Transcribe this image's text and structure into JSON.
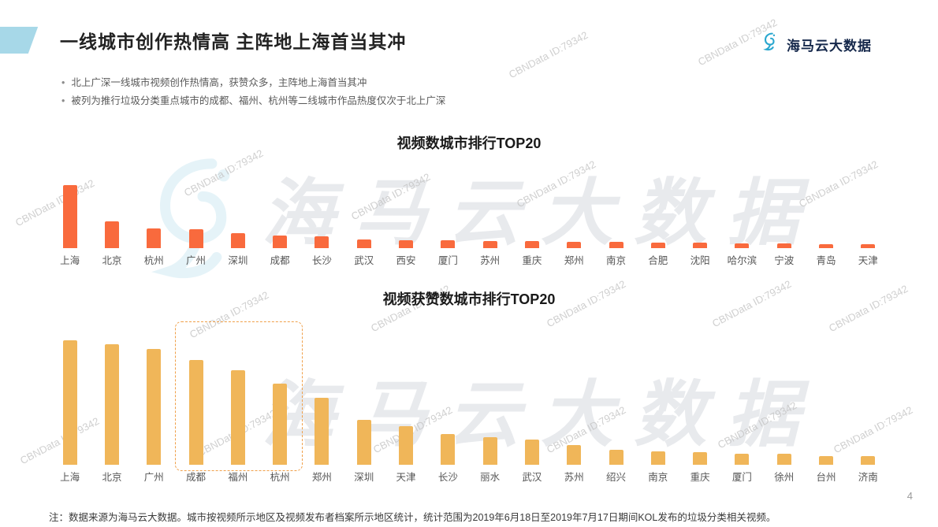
{
  "page": {
    "title": "一线城市创作热情高 主阵地上海首当其冲",
    "page_number": "4",
    "note": "注：数据来源为海马云大数据。城市按视频所示地区及视频发布者档案所示地区统计，统计范围为2019年6月18日至2019年7月17日期间KOL发布的垃圾分类相关视频。"
  },
  "logo": {
    "text": "海马云大数据",
    "icon": "seahorse-swirl-icon",
    "color": "#2aa7cf"
  },
  "bullets": [
    "北上广深一线城市视频创作热情高，获赞众多，主阵地上海首当其冲",
    "被列为推行垃圾分类重点城市的成都、福州、杭州等二线城市作品热度仅次于北上广深"
  ],
  "watermark": {
    "small_text": "CBNData ID:79342",
    "big_text": "海马云大数据"
  },
  "colors": {
    "chart1_bar": "#f96a3d",
    "chart2_bar": "#f0b659",
    "corner_accent": "#a7d8e8",
    "highlight_border": "#f0a04a"
  },
  "chart_data": [
    {
      "type": "bar",
      "title": "视频数城市排行TOP20",
      "categories": [
        "上海",
        "北京",
        "杭州",
        "广州",
        "深圳",
        "成都",
        "长沙",
        "武汉",
        "西安",
        "厦门",
        "苏州",
        "重庆",
        "郑州",
        "南京",
        "合肥",
        "沈阳",
        "哈尔滨",
        "宁波",
        "青岛",
        "天津"
      ],
      "values": [
        100,
        43,
        31,
        30,
        24,
        20,
        19,
        14,
        13,
        12,
        11,
        11,
        10,
        10,
        9,
        9,
        8,
        7,
        6,
        6
      ],
      "bar_color": "#f96a3d",
      "xlabel": "",
      "ylabel": "",
      "ylim": [
        0,
        100
      ],
      "value_note": "relative index estimated from bar heights (max = 100); no y-axis shown in source",
      "grid": false,
      "legend": "none"
    },
    {
      "type": "bar",
      "title": "视频获赞数城市排行TOP20",
      "categories": [
        "上海",
        "北京",
        "广州",
        "成都",
        "福州",
        "杭州",
        "郑州",
        "深圳",
        "天津",
        "长沙",
        "丽水",
        "武汉",
        "苏州",
        "绍兴",
        "南京",
        "重庆",
        "厦门",
        "徐州",
        "台州",
        "济南"
      ],
      "values": [
        100,
        97,
        93,
        84,
        76,
        65,
        54,
        36,
        31,
        25,
        22,
        20,
        16,
        12,
        11,
        10,
        9,
        9,
        7,
        7
      ],
      "bar_color": "#f0b659",
      "xlabel": "",
      "ylabel": "",
      "ylim": [
        0,
        100
      ],
      "value_note": "relative index estimated from bar heights (max = 100); no y-axis shown in source",
      "grid": false,
      "legend": "none",
      "highlight": {
        "categories": [
          "成都",
          "福州",
          "杭州"
        ],
        "style": "dashed orange rounded box"
      }
    }
  ]
}
